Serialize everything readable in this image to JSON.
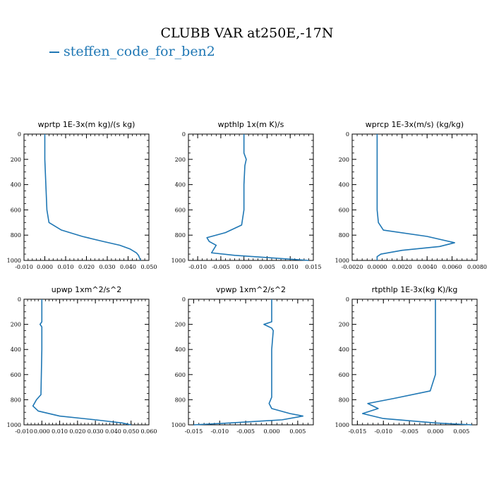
{
  "title": "CLUBB VAR at250E,-17N",
  "legend": {
    "label": "steffen_code_for_ben2",
    "color": "#1f77b4"
  },
  "chart_data": [
    {
      "type": "line",
      "title": "wprtp  1E-3x(m kg)/(s kg)",
      "xlim": [
        -0.01,
        0.05
      ],
      "xticks": [
        "-0.010",
        "0.000",
        "0.010",
        "0.020",
        "0.030",
        "0.040",
        "0.050"
      ],
      "ylim": [
        1000,
        0
      ],
      "yticks": [
        "0",
        "200",
        "400",
        "600",
        "800",
        "1000"
      ],
      "series": [
        {
          "color": "#1f77b4",
          "x": [
            0.0,
            0.0,
            0.0005,
            0.001,
            0.002,
            0.008,
            0.018,
            0.028,
            0.036,
            0.041,
            0.044,
            0.045,
            0.046
          ],
          "y": [
            0,
            200,
            400,
            600,
            700,
            760,
            810,
            850,
            880,
            910,
            940,
            960,
            1000
          ]
        }
      ]
    },
    {
      "type": "line",
      "title": "wpthlp  1x(m K)/s",
      "xlim": [
        -0.012,
        0.015
      ],
      "xticks": [
        "-0.010",
        "-0.005",
        "0.000",
        "0.005",
        "0.010",
        "0.015"
      ],
      "ylim": [
        1000,
        0
      ],
      "yticks": [
        "0",
        "200",
        "400",
        "600",
        "800",
        "1000"
      ],
      "series": [
        {
          "color": "#1f77b4",
          "x": [
            0.0,
            0.0,
            0.0005,
            0.0002,
            0.0,
            0.0,
            -0.0005,
            -0.004,
            -0.008,
            -0.0075,
            -0.006,
            -0.007,
            -0.002,
            0.006,
            0.014
          ],
          "y": [
            0,
            150,
            200,
            250,
            400,
            600,
            720,
            780,
            820,
            850,
            880,
            940,
            960,
            980,
            1000
          ]
        }
      ]
    },
    {
      "type": "line",
      "title": "wprcp  1E-3x(m/s) (kg/kg)",
      "xlim": [
        -0.002,
        0.008
      ],
      "xticks": [
        "-0.0020",
        "0.0000",
        "0.0020",
        "0.0040",
        "0.0060",
        "0.0080"
      ],
      "ylim": [
        1000,
        0
      ],
      "yticks": [
        "0",
        "200",
        "400",
        "600",
        "800",
        "1000"
      ],
      "series": [
        {
          "color": "#1f77b4",
          "x": [
            0.0,
            0.0,
            0.0,
            0.0001,
            0.0005,
            0.004,
            0.0062,
            0.005,
            0.002,
            0.0003,
            0.0,
            0.0
          ],
          "y": [
            0,
            200,
            600,
            700,
            760,
            810,
            860,
            890,
            920,
            950,
            970,
            1000
          ]
        }
      ]
    },
    {
      "type": "line",
      "title": "upwp  1xm^2/s^2",
      "xlim": [
        -0.01,
        0.06
      ],
      "xticks": [
        "-0.010",
        "0.000",
        "0.010",
        "0.020",
        "0.030",
        "0.040",
        "0.050",
        "0.060"
      ],
      "ylim": [
        1000,
        0
      ],
      "yticks": [
        "0",
        "200",
        "400",
        "600",
        "800",
        "1000"
      ],
      "series": [
        {
          "color": "#1f77b4",
          "x": [
            0.0,
            0.0,
            -0.001,
            0.0,
            0.0,
            -0.0005,
            -0.003,
            -0.005,
            -0.002,
            0.01,
            0.03,
            0.045,
            0.05
          ],
          "y": [
            0,
            180,
            200,
            220,
            400,
            760,
            800,
            850,
            890,
            930,
            960,
            985,
            1000
          ]
        }
      ]
    },
    {
      "type": "line",
      "title": "vpwp  1xm^2/s^2",
      "xlim": [
        -0.016,
        0.008
      ],
      "xticks": [
        "-0.015",
        "-0.010",
        "-0.005",
        "0.000",
        "0.005"
      ],
      "ylim": [
        1000,
        0
      ],
      "yticks": [
        "0",
        "200",
        "400",
        "600",
        "800",
        "1000"
      ],
      "series": [
        {
          "color": "#1f77b4",
          "x": [
            0.0,
            0.0,
            -0.0015,
            0.0,
            0.0003,
            0.0,
            0.0,
            -0.0005,
            0.0,
            0.0035,
            0.006,
            0.002,
            -0.008,
            -0.015
          ],
          "y": [
            0,
            180,
            200,
            230,
            250,
            400,
            780,
            830,
            870,
            910,
            930,
            960,
            985,
            1000
          ]
        }
      ]
    },
    {
      "type": "line",
      "title": "rtpthlp  1E-3x(kg K)/kg",
      "xlim": [
        -0.016,
        0.008
      ],
      "xticks": [
        "-0.015",
        "-0.010",
        "-0.005",
        "0.000",
        "0.005"
      ],
      "ylim": [
        1000,
        0
      ],
      "yticks": [
        "0",
        "200",
        "400",
        "600",
        "800",
        "1000"
      ],
      "series": [
        {
          "color": "#1f77b4",
          "x": [
            0.0,
            0.0,
            0.0,
            -0.001,
            -0.008,
            -0.013,
            -0.011,
            -0.014,
            -0.01,
            0.0,
            0.007
          ],
          "y": [
            0,
            200,
            600,
            730,
            790,
            830,
            870,
            910,
            950,
            985,
            1000
          ]
        }
      ]
    }
  ]
}
